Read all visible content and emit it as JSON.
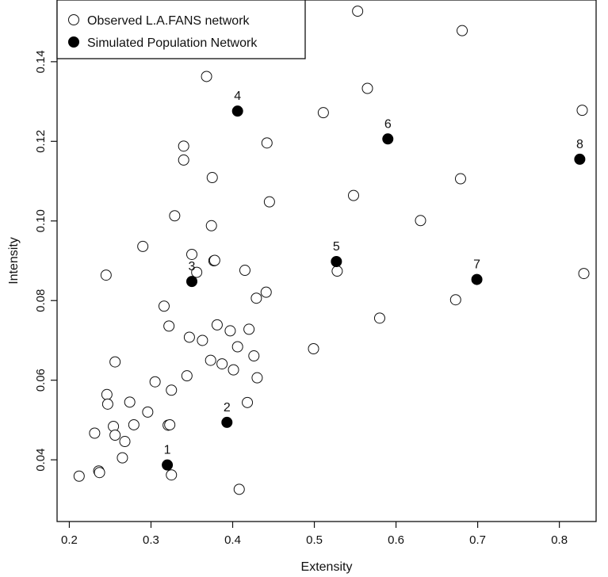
{
  "chart_data": {
    "type": "scatter",
    "title": "",
    "xlabel": "Extensity",
    "ylabel": "Intensity",
    "xlim": [
      0.185,
      0.845
    ],
    "ylim": [
      0.0245,
      0.1555
    ],
    "xticks": [
      0.2,
      0.3,
      0.4,
      0.5,
      0.6,
      0.7,
      0.8
    ],
    "xtick_labels": [
      "0.2",
      "0.3",
      "0.4",
      "0.5",
      "0.6",
      "0.7",
      "0.8"
    ],
    "yticks": [
      0.04,
      0.06,
      0.08,
      0.1,
      0.12,
      0.14
    ],
    "ytick_labels": [
      "0.04",
      "0.06",
      "0.08",
      "0.10",
      "0.12",
      "0.14"
    ],
    "grid": false,
    "legend": {
      "placement": "top-left",
      "entries": [
        {
          "label": "Observed L.A.FANS network",
          "marker": "open-circle"
        },
        {
          "label": "Simulated Population Network",
          "marker": "filled-circle"
        }
      ]
    },
    "series": [
      {
        "name": "Observed L.A.FANS network",
        "marker": "open-circle",
        "points": [
          {
            "x": 0.212,
            "y": 0.0359
          },
          {
            "x": 0.236,
            "y": 0.0372
          },
          {
            "x": 0.237,
            "y": 0.0368
          },
          {
            "x": 0.231,
            "y": 0.0467
          },
          {
            "x": 0.254,
            "y": 0.0484
          },
          {
            "x": 0.256,
            "y": 0.0462
          },
          {
            "x": 0.265,
            "y": 0.0405
          },
          {
            "x": 0.268,
            "y": 0.0446
          },
          {
            "x": 0.279,
            "y": 0.0488
          },
          {
            "x": 0.296,
            "y": 0.052
          },
          {
            "x": 0.246,
            "y": 0.0564
          },
          {
            "x": 0.247,
            "y": 0.054
          },
          {
            "x": 0.274,
            "y": 0.0545
          },
          {
            "x": 0.256,
            "y": 0.0646
          },
          {
            "x": 0.305,
            "y": 0.0596
          },
          {
            "x": 0.321,
            "y": 0.0487
          },
          {
            "x": 0.323,
            "y": 0.0488
          },
          {
            "x": 0.325,
            "y": 0.0362
          },
          {
            "x": 0.325,
            "y": 0.0575
          },
          {
            "x": 0.344,
            "y": 0.0611
          },
          {
            "x": 0.347,
            "y": 0.0708
          },
          {
            "x": 0.322,
            "y": 0.0736
          },
          {
            "x": 0.316,
            "y": 0.0786
          },
          {
            "x": 0.245,
            "y": 0.0864
          },
          {
            "x": 0.29,
            "y": 0.0936
          },
          {
            "x": 0.329,
            "y": 0.1013
          },
          {
            "x": 0.34,
            "y": 0.1188
          },
          {
            "x": 0.34,
            "y": 0.1153
          },
          {
            "x": 0.35,
            "y": 0.0916
          },
          {
            "x": 0.356,
            "y": 0.0871
          },
          {
            "x": 0.368,
            "y": 0.1363
          },
          {
            "x": 0.375,
            "y": 0.1109
          },
          {
            "x": 0.374,
            "y": 0.0988
          },
          {
            "x": 0.377,
            "y": 0.09
          },
          {
            "x": 0.378,
            "y": 0.0901
          },
          {
            "x": 0.373,
            "y": 0.065
          },
          {
            "x": 0.363,
            "y": 0.07
          },
          {
            "x": 0.381,
            "y": 0.0739
          },
          {
            "x": 0.387,
            "y": 0.0641
          },
          {
            "x": 0.401,
            "y": 0.0626
          },
          {
            "x": 0.397,
            "y": 0.0724
          },
          {
            "x": 0.406,
            "y": 0.0684
          },
          {
            "x": 0.408,
            "y": 0.0326
          },
          {
            "x": 0.418,
            "y": 0.0544
          },
          {
            "x": 0.415,
            "y": 0.0876
          },
          {
            "x": 0.42,
            "y": 0.0728
          },
          {
            "x": 0.426,
            "y": 0.0661
          },
          {
            "x": 0.43,
            "y": 0.0606
          },
          {
            "x": 0.429,
            "y": 0.0806
          },
          {
            "x": 0.441,
            "y": 0.0821
          },
          {
            "x": 0.442,
            "y": 0.1196
          },
          {
            "x": 0.445,
            "y": 0.1048
          },
          {
            "x": 0.499,
            "y": 0.0679
          },
          {
            "x": 0.511,
            "y": 0.1272
          },
          {
            "x": 0.528,
            "y": 0.0874
          },
          {
            "x": 0.548,
            "y": 0.1064
          },
          {
            "x": 0.553,
            "y": 0.1527
          },
          {
            "x": 0.565,
            "y": 0.1333
          },
          {
            "x": 0.58,
            "y": 0.0756
          },
          {
            "x": 0.63,
            "y": 0.1001
          },
          {
            "x": 0.673,
            "y": 0.0802
          },
          {
            "x": 0.679,
            "y": 0.1106
          },
          {
            "x": 0.681,
            "y": 0.1478
          },
          {
            "x": 0.828,
            "y": 0.1278
          },
          {
            "x": 0.83,
            "y": 0.0868
          }
        ]
      },
      {
        "name": "Simulated Population Network",
        "marker": "filled-circle",
        "points": [
          {
            "label": "1",
            "x": 0.32,
            "y": 0.0387
          },
          {
            "label": "2",
            "x": 0.393,
            "y": 0.0494
          },
          {
            "label": "3",
            "x": 0.35,
            "y": 0.0848
          },
          {
            "label": "4",
            "x": 0.406,
            "y": 0.1276
          },
          {
            "label": "5",
            "x": 0.527,
            "y": 0.0898
          },
          {
            "label": "6",
            "x": 0.59,
            "y": 0.1206
          },
          {
            "label": "7",
            "x": 0.699,
            "y": 0.0853
          },
          {
            "label": "8",
            "x": 0.825,
            "y": 0.1155
          }
        ]
      }
    ]
  }
}
